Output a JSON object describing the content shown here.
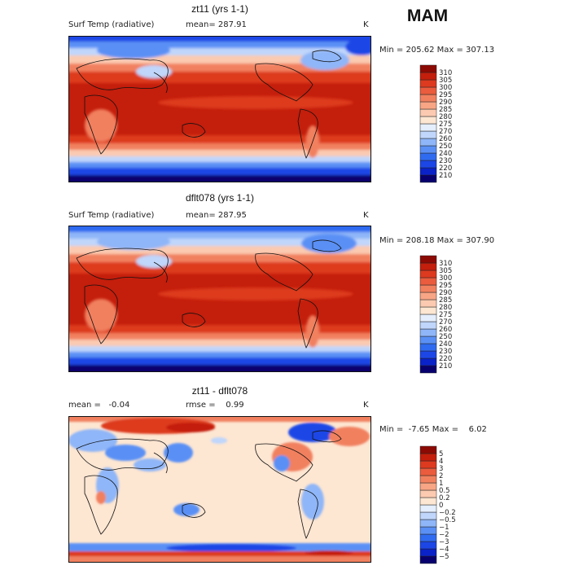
{
  "season": "MAM",
  "panels": [
    {
      "title": "zt11 (yrs 1-1)",
      "left_label": "Surf Temp (radiative)",
      "mid_label": "mean= 287.91",
      "units": "K",
      "minmax": "Min = 205.62 Max = 307.13",
      "colorbar": {
        "colors": [
          "#08006e",
          "#0a22c8",
          "#1c46e6",
          "#2f6bf0",
          "#5a90f5",
          "#8fb6f8",
          "#c0d6fb",
          "#e4eefc",
          "#fde6d2",
          "#fbcab0",
          "#f7a585",
          "#f1805f",
          "#ea5c3d",
          "#dd3a1f",
          "#c41e0c",
          "#8c0a04"
        ],
        "labels": [
          "210",
          "220",
          "230",
          "240",
          "250",
          "260",
          "270",
          "275",
          "280",
          "285",
          "290",
          "295",
          "300",
          "305",
          "310"
        ]
      }
    },
    {
      "title": "dflt078 (yrs 1-1)",
      "left_label": "Surf Temp (radiative)",
      "mid_label": "mean= 287.95",
      "units": "K",
      "minmax": "Min = 208.18 Max = 307.90",
      "colorbar": {
        "colors": [
          "#08006e",
          "#0a22c8",
          "#1c46e6",
          "#2f6bf0",
          "#5a90f5",
          "#8fb6f8",
          "#c0d6fb",
          "#e4eefc",
          "#fde6d2",
          "#fbcab0",
          "#f7a585",
          "#f1805f",
          "#ea5c3d",
          "#dd3a1f",
          "#c41e0c",
          "#8c0a04"
        ],
        "labels": [
          "210",
          "220",
          "230",
          "240",
          "250",
          "260",
          "270",
          "275",
          "280",
          "285",
          "290",
          "295",
          "300",
          "305",
          "310"
        ]
      }
    },
    {
      "title": "zt11 - dflt078",
      "left_label": "mean =   -0.04",
      "mid_label": "rmse =    0.99",
      "units": "K",
      "minmax": "Min =  -7.65 Max =    6.02",
      "colorbar": {
        "colors": [
          "#08006e",
          "#0a22c8",
          "#1c46e6",
          "#2f6bf0",
          "#5a90f5",
          "#8fb6f8",
          "#c0d6fb",
          "#e4eefc",
          "#fde6d2",
          "#fbcab0",
          "#f7a585",
          "#f1805f",
          "#ea5c3d",
          "#dd3a1f",
          "#c41e0c",
          "#8c0a04"
        ],
        "labels": [
          "−5",
          "−4",
          "−3",
          "−2",
          "−1",
          "−0.5",
          "−0.2",
          "0",
          "0.2",
          "0.5",
          "1",
          "2",
          "3",
          "4",
          "5"
        ]
      }
    }
  ]
}
